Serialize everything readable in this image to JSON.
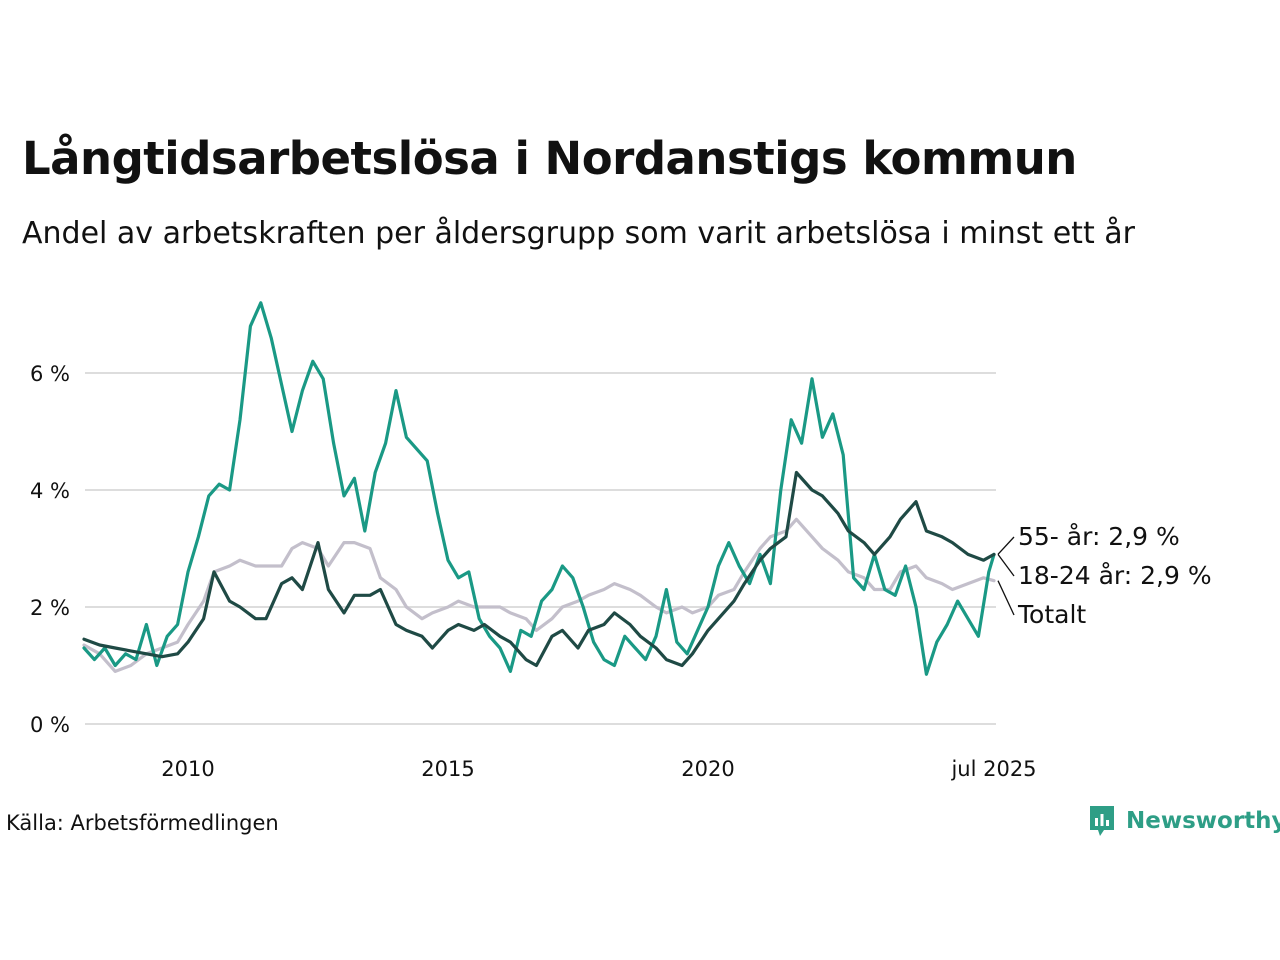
{
  "title": "Långtidsarbetslösa i Nordanstigs kommun",
  "subtitle": "Andel av arbetskraften per åldersgrupp som varit arbetslösa i minst ett år",
  "source": "Källa: Arbetsförmedlingen",
  "logo_text": "Newsworthy",
  "colors": {
    "youth": "#1a9985",
    "senior": "#1f4a45",
    "total": "#c3bfcb",
    "grid": "#dddddd",
    "logo": "#2e9e86"
  },
  "chart_data": {
    "type": "line",
    "title": "Långtidsarbetslösa i Nordanstigs kommun",
    "subtitle": "Andel av arbetskraften per åldersgrupp som varit arbetslösa i minst ett år",
    "x_start": "2008-01",
    "x_end": "2025-07",
    "x_ticks": [
      {
        "x": 2010.0,
        "label": "2010"
      },
      {
        "x": 2015.0,
        "label": "2015"
      },
      {
        "x": 2020.0,
        "label": "2020"
      },
      {
        "x": 2025.5,
        "label": "jul 2025"
      }
    ],
    "y_ticks": [
      {
        "y": 0,
        "label": "0 %"
      },
      {
        "y": 2,
        "label": "2 %"
      },
      {
        "y": 4,
        "label": "4 %"
      },
      {
        "y": 6,
        "label": "6 %"
      }
    ],
    "ylim": [
      0,
      7.3
    ],
    "grid": true,
    "series": [
      {
        "name": "Totalt",
        "end_label": "Totalt",
        "color": "#c3bfcb",
        "points": [
          [
            2008.0,
            1.35
          ],
          [
            2008.3,
            1.2
          ],
          [
            2008.6,
            0.9
          ],
          [
            2008.9,
            1.0
          ],
          [
            2009.2,
            1.2
          ],
          [
            2009.5,
            1.3
          ],
          [
            2009.8,
            1.4
          ],
          [
            2010.0,
            1.7
          ],
          [
            2010.3,
            2.1
          ],
          [
            2010.5,
            2.6
          ],
          [
            2010.8,
            2.7
          ],
          [
            2011.0,
            2.8
          ],
          [
            2011.3,
            2.7
          ],
          [
            2011.5,
            2.7
          ],
          [
            2011.8,
            2.7
          ],
          [
            2012.0,
            3.0
          ],
          [
            2012.2,
            3.1
          ],
          [
            2012.5,
            3.0
          ],
          [
            2012.7,
            2.7
          ],
          [
            2013.0,
            3.1
          ],
          [
            2013.2,
            3.1
          ],
          [
            2013.5,
            3.0
          ],
          [
            2013.7,
            2.5
          ],
          [
            2014.0,
            2.3
          ],
          [
            2014.2,
            2.0
          ],
          [
            2014.5,
            1.8
          ],
          [
            2014.7,
            1.9
          ],
          [
            2015.0,
            2.0
          ],
          [
            2015.2,
            2.1
          ],
          [
            2015.5,
            2.0
          ],
          [
            2015.7,
            2.0
          ],
          [
            2016.0,
            2.0
          ],
          [
            2016.2,
            1.9
          ],
          [
            2016.5,
            1.8
          ],
          [
            2016.7,
            1.6
          ],
          [
            2017.0,
            1.8
          ],
          [
            2017.2,
            2.0
          ],
          [
            2017.5,
            2.1
          ],
          [
            2017.7,
            2.2
          ],
          [
            2018.0,
            2.3
          ],
          [
            2018.2,
            2.4
          ],
          [
            2018.5,
            2.3
          ],
          [
            2018.7,
            2.2
          ],
          [
            2019.0,
            2.0
          ],
          [
            2019.2,
            1.9
          ],
          [
            2019.5,
            2.0
          ],
          [
            2019.7,
            1.9
          ],
          [
            2020.0,
            2.0
          ],
          [
            2020.2,
            2.2
          ],
          [
            2020.5,
            2.3
          ],
          [
            2020.7,
            2.6
          ],
          [
            2021.0,
            3.0
          ],
          [
            2021.2,
            3.2
          ],
          [
            2021.5,
            3.3
          ],
          [
            2021.7,
            3.5
          ],
          [
            2022.0,
            3.2
          ],
          [
            2022.2,
            3.0
          ],
          [
            2022.5,
            2.8
          ],
          [
            2022.7,
            2.6
          ],
          [
            2023.0,
            2.5
          ],
          [
            2023.2,
            2.3
          ],
          [
            2023.5,
            2.3
          ],
          [
            2023.7,
            2.6
          ],
          [
            2024.0,
            2.7
          ],
          [
            2024.2,
            2.5
          ],
          [
            2024.5,
            2.4
          ],
          [
            2024.7,
            2.3
          ],
          [
            2025.0,
            2.4
          ],
          [
            2025.3,
            2.5
          ],
          [
            2025.5,
            2.45
          ]
        ]
      },
      {
        "name": "18-24 år",
        "end_label": "18-24 år: 2,9 %",
        "color": "#1a9985",
        "points": [
          [
            2008.0,
            1.3
          ],
          [
            2008.2,
            1.1
          ],
          [
            2008.4,
            1.3
          ],
          [
            2008.6,
            1.0
          ],
          [
            2008.8,
            1.2
          ],
          [
            2009.0,
            1.1
          ],
          [
            2009.2,
            1.7
          ],
          [
            2009.4,
            1.0
          ],
          [
            2009.6,
            1.5
          ],
          [
            2009.8,
            1.7
          ],
          [
            2010.0,
            2.6
          ],
          [
            2010.2,
            3.2
          ],
          [
            2010.4,
            3.9
          ],
          [
            2010.6,
            4.1
          ],
          [
            2010.8,
            4.0
          ],
          [
            2011.0,
            5.2
          ],
          [
            2011.2,
            6.8
          ],
          [
            2011.4,
            7.2
          ],
          [
            2011.6,
            6.6
          ],
          [
            2011.8,
            5.8
          ],
          [
            2012.0,
            5.0
          ],
          [
            2012.2,
            5.7
          ],
          [
            2012.4,
            6.2
          ],
          [
            2012.6,
            5.9
          ],
          [
            2012.8,
            4.8
          ],
          [
            2013.0,
            3.9
          ],
          [
            2013.2,
            4.2
          ],
          [
            2013.4,
            3.3
          ],
          [
            2013.6,
            4.3
          ],
          [
            2013.8,
            4.8
          ],
          [
            2014.0,
            5.7
          ],
          [
            2014.2,
            4.9
          ],
          [
            2014.4,
            4.7
          ],
          [
            2014.6,
            4.5
          ],
          [
            2014.8,
            3.6
          ],
          [
            2015.0,
            2.8
          ],
          [
            2015.2,
            2.5
          ],
          [
            2015.4,
            2.6
          ],
          [
            2015.6,
            1.8
          ],
          [
            2015.8,
            1.5
          ],
          [
            2016.0,
            1.3
          ],
          [
            2016.2,
            0.9
          ],
          [
            2016.4,
            1.6
          ],
          [
            2016.6,
            1.5
          ],
          [
            2016.8,
            2.1
          ],
          [
            2017.0,
            2.3
          ],
          [
            2017.2,
            2.7
          ],
          [
            2017.4,
            2.5
          ],
          [
            2017.6,
            2.0
          ],
          [
            2017.8,
            1.4
          ],
          [
            2018.0,
            1.1
          ],
          [
            2018.2,
            1.0
          ],
          [
            2018.4,
            1.5
          ],
          [
            2018.6,
            1.3
          ],
          [
            2018.8,
            1.1
          ],
          [
            2019.0,
            1.5
          ],
          [
            2019.2,
            2.3
          ],
          [
            2019.4,
            1.4
          ],
          [
            2019.6,
            1.2
          ],
          [
            2019.8,
            1.6
          ],
          [
            2020.0,
            2.0
          ],
          [
            2020.2,
            2.7
          ],
          [
            2020.4,
            3.1
          ],
          [
            2020.6,
            2.7
          ],
          [
            2020.8,
            2.4
          ],
          [
            2021.0,
            2.9
          ],
          [
            2021.2,
            2.4
          ],
          [
            2021.4,
            4.0
          ],
          [
            2021.6,
            5.2
          ],
          [
            2021.8,
            4.8
          ],
          [
            2022.0,
            5.9
          ],
          [
            2022.2,
            4.9
          ],
          [
            2022.4,
            5.3
          ],
          [
            2022.6,
            4.6
          ],
          [
            2022.8,
            2.5
          ],
          [
            2023.0,
            2.3
          ],
          [
            2023.2,
            2.9
          ],
          [
            2023.4,
            2.3
          ],
          [
            2023.6,
            2.2
          ],
          [
            2023.8,
            2.7
          ],
          [
            2024.0,
            2.0
          ],
          [
            2024.2,
            0.85
          ],
          [
            2024.4,
            1.4
          ],
          [
            2024.6,
            1.7
          ],
          [
            2024.8,
            2.1
          ],
          [
            2025.0,
            1.8
          ],
          [
            2025.2,
            1.5
          ],
          [
            2025.4,
            2.6
          ],
          [
            2025.5,
            2.9
          ]
        ]
      },
      {
        "name": "55- år",
        "end_label": "55- år: 2,9 %",
        "color": "#1f4a45",
        "points": [
          [
            2008.0,
            1.45
          ],
          [
            2008.3,
            1.35
          ],
          [
            2008.6,
            1.3
          ],
          [
            2008.9,
            1.25
          ],
          [
            2009.2,
            1.2
          ],
          [
            2009.5,
            1.15
          ],
          [
            2009.8,
            1.2
          ],
          [
            2010.0,
            1.4
          ],
          [
            2010.3,
            1.8
          ],
          [
            2010.5,
            2.6
          ],
          [
            2010.8,
            2.1
          ],
          [
            2011.0,
            2.0
          ],
          [
            2011.3,
            1.8
          ],
          [
            2011.5,
            1.8
          ],
          [
            2011.8,
            2.4
          ],
          [
            2012.0,
            2.5
          ],
          [
            2012.2,
            2.3
          ],
          [
            2012.5,
            3.1
          ],
          [
            2012.7,
            2.3
          ],
          [
            2013.0,
            1.9
          ],
          [
            2013.2,
            2.2
          ],
          [
            2013.5,
            2.2
          ],
          [
            2013.7,
            2.3
          ],
          [
            2014.0,
            1.7
          ],
          [
            2014.2,
            1.6
          ],
          [
            2014.5,
            1.5
          ],
          [
            2014.7,
            1.3
          ],
          [
            2015.0,
            1.6
          ],
          [
            2015.2,
            1.7
          ],
          [
            2015.5,
            1.6
          ],
          [
            2015.7,
            1.7
          ],
          [
            2016.0,
            1.5
          ],
          [
            2016.2,
            1.4
          ],
          [
            2016.5,
            1.1
          ],
          [
            2016.7,
            1.0
          ],
          [
            2017.0,
            1.5
          ],
          [
            2017.2,
            1.6
          ],
          [
            2017.5,
            1.3
          ],
          [
            2017.7,
            1.6
          ],
          [
            2018.0,
            1.7
          ],
          [
            2018.2,
            1.9
          ],
          [
            2018.5,
            1.7
          ],
          [
            2018.7,
            1.5
          ],
          [
            2019.0,
            1.3
          ],
          [
            2019.2,
            1.1
          ],
          [
            2019.5,
            1.0
          ],
          [
            2019.7,
            1.2
          ],
          [
            2020.0,
            1.6
          ],
          [
            2020.2,
            1.8
          ],
          [
            2020.5,
            2.1
          ],
          [
            2020.7,
            2.4
          ],
          [
            2021.0,
            2.8
          ],
          [
            2021.2,
            3.0
          ],
          [
            2021.5,
            3.2
          ],
          [
            2021.7,
            4.3
          ],
          [
            2022.0,
            4.0
          ],
          [
            2022.2,
            3.9
          ],
          [
            2022.5,
            3.6
          ],
          [
            2022.7,
            3.3
          ],
          [
            2023.0,
            3.1
          ],
          [
            2023.2,
            2.9
          ],
          [
            2023.5,
            3.2
          ],
          [
            2023.7,
            3.5
          ],
          [
            2024.0,
            3.8
          ],
          [
            2024.2,
            3.3
          ],
          [
            2024.5,
            3.2
          ],
          [
            2024.7,
            3.1
          ],
          [
            2025.0,
            2.9
          ],
          [
            2025.3,
            2.8
          ],
          [
            2025.5,
            2.9
          ]
        ]
      }
    ]
  }
}
